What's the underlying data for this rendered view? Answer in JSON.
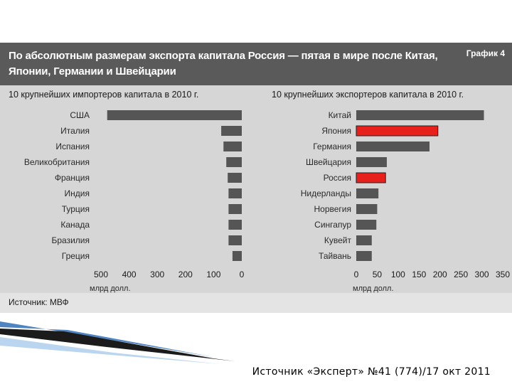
{
  "header": {
    "title_lines": [
      "По абсолютным размерам экспорта капитала Россия — пятая в мире после Китая,",
      "Японии, Германии и Швейцарии"
    ],
    "tag": "График 4"
  },
  "colors": {
    "bar": "#555555",
    "highlight": "#e8201b"
  },
  "chart_data": [
    {
      "type": "bar",
      "orientation": "horizontal",
      "direction": "reversed",
      "title": "10 крупнейших импортеров капитала в 2010 г.",
      "categories": [
        "США",
        "Италия",
        "Испания",
        "Великобритания",
        "Франция",
        "Индия",
        "Турция",
        "Канада",
        "Бразилия",
        "Греция"
      ],
      "values": [
        478,
        73,
        65,
        55,
        50,
        47,
        47,
        47,
        47,
        33
      ],
      "xlim": [
        0,
        500
      ],
      "ticks": [
        "500",
        "400",
        "300",
        "200",
        "100",
        "0"
      ],
      "xlabel": "млрд долл.",
      "highlight": []
    },
    {
      "type": "bar",
      "orientation": "horizontal",
      "title": "10 крупнейших экспортеров капитала в 2010 г.",
      "categories": [
        "Китай",
        "Япония",
        "Германия",
        "Швейцария",
        "Россия",
        "Нидерланды",
        "Норвегия",
        "Сингапур",
        "Кувейт",
        "Тайвань"
      ],
      "values": [
        305,
        195,
        175,
        73,
        70,
        53,
        50,
        48,
        37,
        37
      ],
      "xlim": [
        0,
        350
      ],
      "ticks": [
        "0",
        "50",
        "100",
        "150",
        "200",
        "250",
        "300",
        "350"
      ],
      "xlabel": "млрд долл.",
      "highlight": [
        "Япония",
        "Россия"
      ]
    }
  ],
  "source": "Источник: МВФ",
  "caption": "Источник «Эксперт» №41 (774)/17 окт 2011"
}
